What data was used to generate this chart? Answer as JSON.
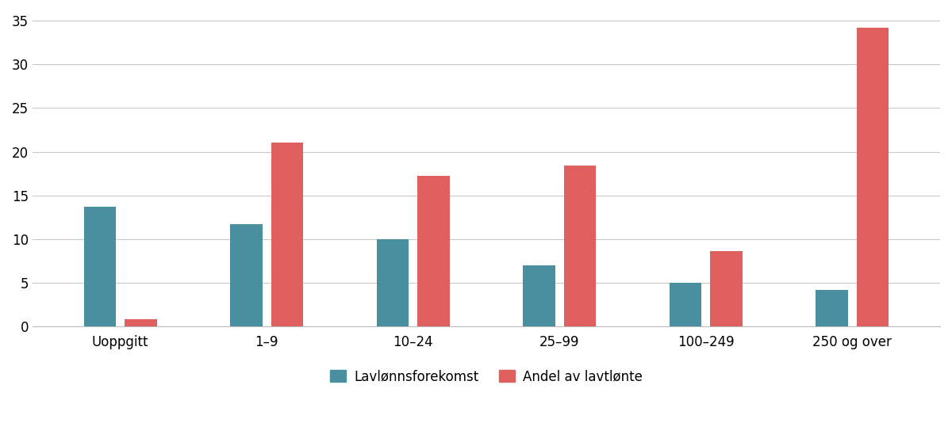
{
  "categories": [
    "Uoppgitt",
    "1–9",
    "10–24",
    "25–99",
    "100–249",
    "250 og over"
  ],
  "lavlonnsforekomst": [
    13.7,
    11.7,
    10.0,
    7.0,
    5.0,
    4.2
  ],
  "andel_av_lavtlonte": [
    0.8,
    21.0,
    17.2,
    18.4,
    8.6,
    34.2
  ],
  "color_lavlonns": "#4a8fa0",
  "color_andel": "#e06060",
  "ylim": [
    0,
    36
  ],
  "yticks": [
    0,
    5,
    10,
    15,
    20,
    25,
    30,
    35
  ],
  "legend_lavlonns": "Lavlønnsforekomst",
  "legend_andel": "Andel av lavtlønte",
  "background_color": "#ffffff",
  "bar_width": 0.22,
  "bar_gap": 0.06,
  "grid_color": "#c8c8c8",
  "tick_fontsize": 12,
  "legend_fontsize": 12
}
